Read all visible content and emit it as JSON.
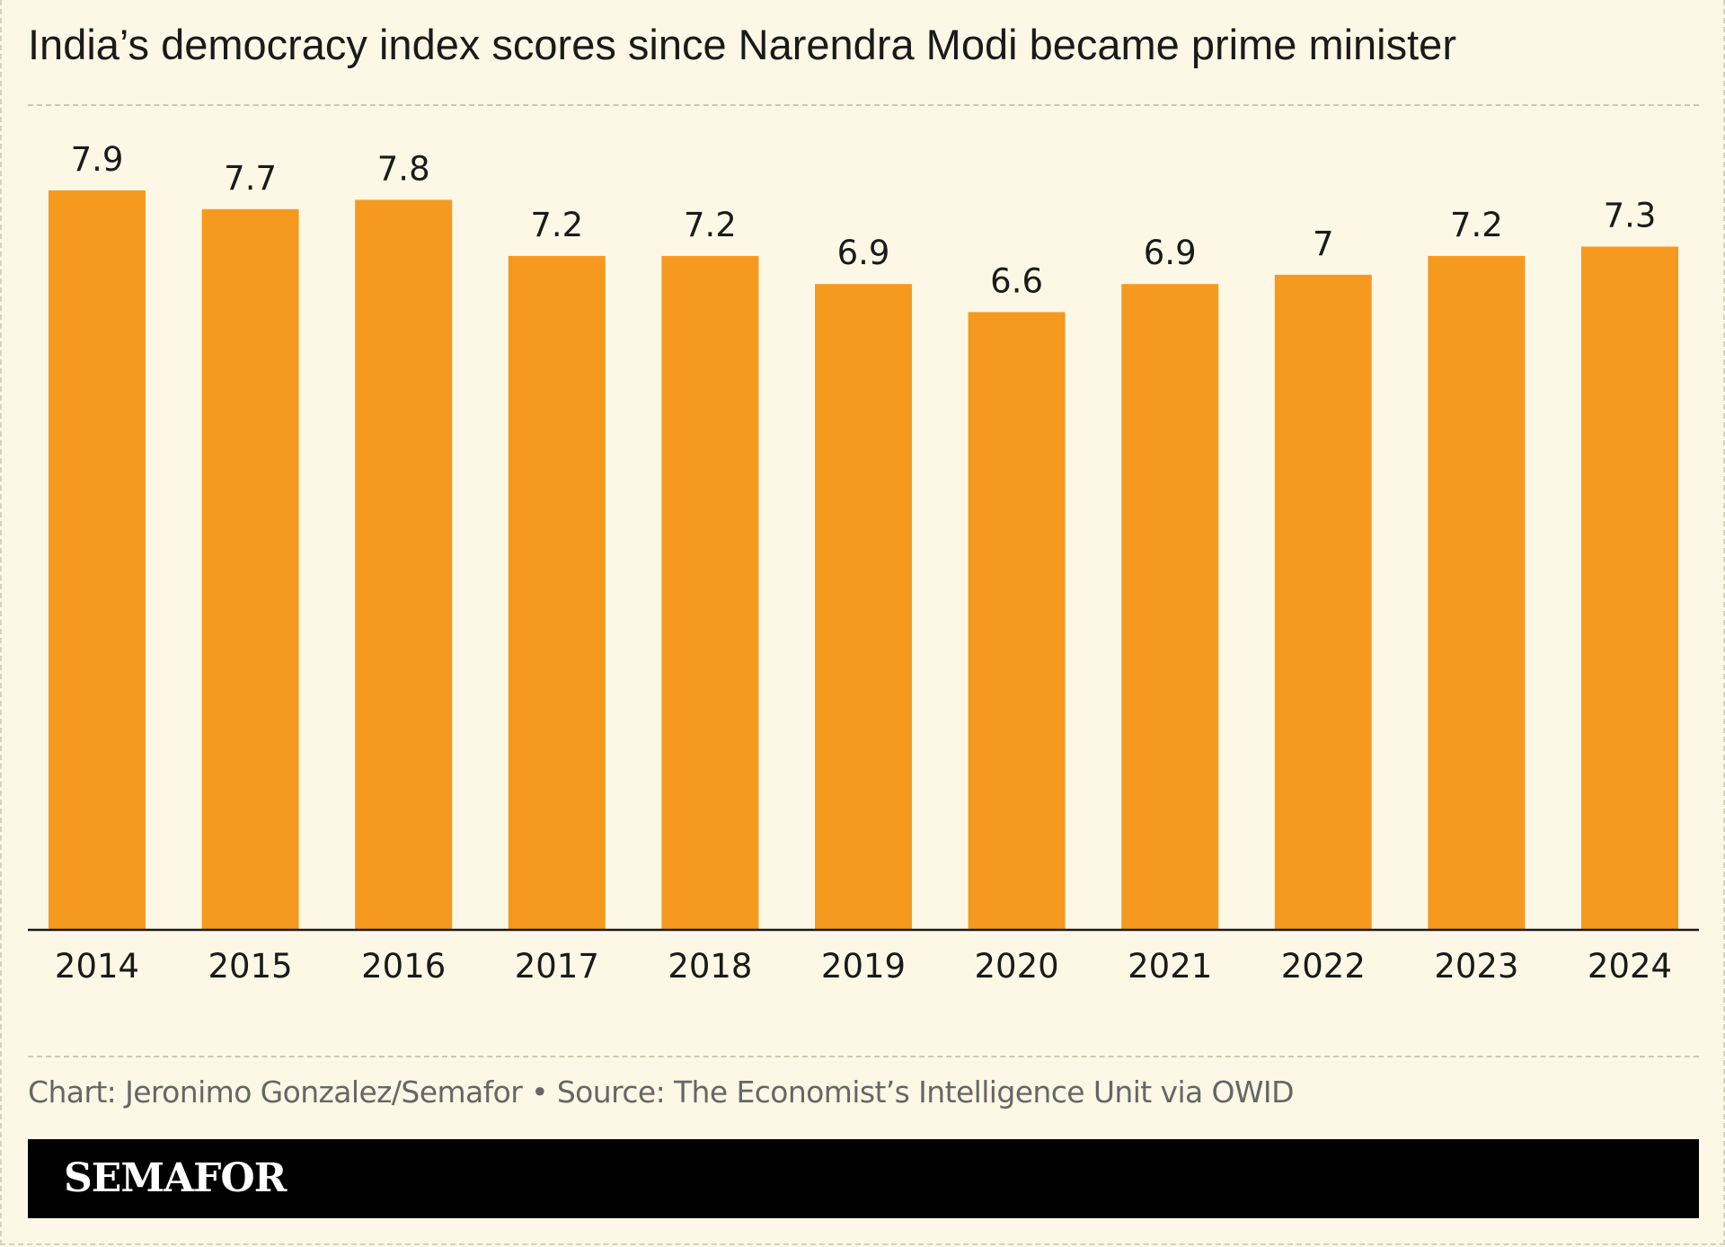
{
  "header": {
    "title": "India’s democracy index scores since Narendra Modi became prime minister"
  },
  "chart_data": {
    "type": "bar",
    "categories": [
      "2014",
      "2015",
      "2016",
      "2017",
      "2018",
      "2019",
      "2020",
      "2021",
      "2022",
      "2023",
      "2024"
    ],
    "values": [
      7.9,
      7.7,
      7.8,
      7.2,
      7.2,
      6.9,
      6.6,
      6.9,
      7,
      7.2,
      7.3
    ],
    "value_labels": [
      "7.9",
      "7.7",
      "7.8",
      "7.2",
      "7.2",
      "6.9",
      "6.6",
      "6.9",
      "7",
      "7.2",
      "7.3"
    ],
    "ylim": [
      0,
      7.9
    ],
    "bar_color": "#f6991f",
    "grid": false
  },
  "footer": {
    "credit": "Chart: Jeronimo Gonzalez/Semafor • Source: The Economist’s Intelligence Unit via OWID",
    "brand": "SEMAFOR"
  },
  "colors": {
    "background": "#fdf8e6",
    "bar": "#f6991f",
    "brand_bar": "#000000"
  }
}
